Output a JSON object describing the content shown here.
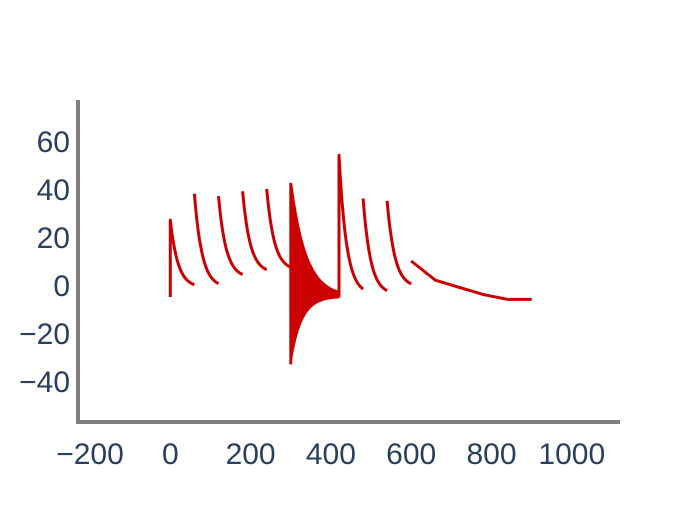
{
  "chart_data": {
    "type": "line",
    "title": "",
    "xlabel": "",
    "ylabel": "",
    "xlim": [
      -230,
      1120
    ],
    "ylim": [
      -57,
      77
    ],
    "x_ticks": [
      -200,
      0,
      200,
      400,
      600,
      800,
      1000
    ],
    "y_ticks": [
      -40,
      -20,
      0,
      20,
      40,
      60
    ],
    "x_tick_labels": [
      "−200",
      "0",
      "200",
      "400",
      "600",
      "800",
      "1000"
    ],
    "y_tick_labels": [
      "−40",
      "−20",
      "0",
      "20",
      "40",
      "60"
    ],
    "grid": false,
    "legend": "none",
    "colors": {
      "series": "#cc0000",
      "axis": "#7f7f7f",
      "tick_text": "#2a3f5f"
    },
    "series": [
      {
        "name": "",
        "spikes": [
          {
            "x_start": 0,
            "x_end": 60,
            "peak": 27,
            "end": -1,
            "min": -5
          },
          {
            "x_start": 60,
            "x_end": 120,
            "peak": 38,
            "end": -1
          },
          {
            "x_start": 120,
            "x_end": 180,
            "peak": 37,
            "end": 3
          },
          {
            "x_start": 180,
            "x_end": 240,
            "peak": 39,
            "end": 5
          },
          {
            "x_start": 240,
            "x_end": 300,
            "peak": 40,
            "end": 6
          },
          {
            "x_start": 300,
            "x_end": 420,
            "peak": 42,
            "end": -5,
            "min": -33
          },
          {
            "x_start": 420,
            "x_end": 480,
            "peak": 54,
            "end": -4,
            "min": -5
          },
          {
            "x_start": 480,
            "x_end": 540,
            "peak": 36,
            "end": -4
          },
          {
            "x_start": 540,
            "x_end": 600,
            "peak": 35,
            "end": -1
          }
        ],
        "tail": [
          {
            "x": 600,
            "y": 10
          },
          {
            "x": 660,
            "y": 2
          },
          {
            "x": 720,
            "y": -1
          },
          {
            "x": 780,
            "y": -4
          },
          {
            "x": 840,
            "y": -6
          },
          {
            "x": 900,
            "y": -6
          }
        ]
      }
    ]
  }
}
